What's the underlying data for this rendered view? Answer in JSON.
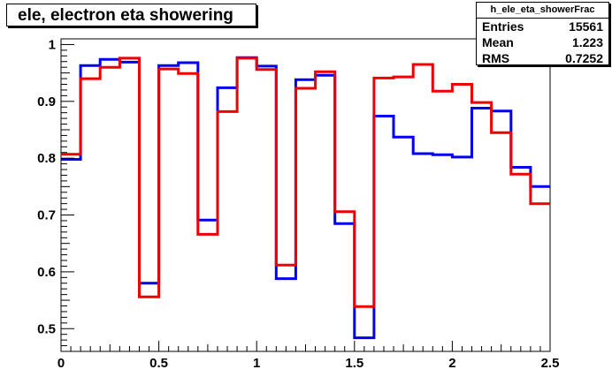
{
  "chart_data": {
    "type": "line",
    "title": "ele, electron eta showering",
    "xlabel": "",
    "ylabel": "",
    "xlim": [
      0,
      2.5
    ],
    "ylim": [
      0.46,
      1.01
    ],
    "x_ticks": [
      "0",
      "0.5",
      "1",
      "1.5",
      "2",
      "2.5"
    ],
    "y_ticks": [
      "0.5",
      "0.6",
      "0.7",
      "0.8",
      "0.9",
      "1"
    ],
    "bin_edges": [
      0,
      0.1,
      0.2,
      0.3,
      0.4,
      0.5,
      0.6,
      0.7,
      0.8,
      0.9,
      1.0,
      1.1,
      1.2,
      1.3,
      1.4,
      1.5,
      1.6,
      1.7,
      1.8,
      1.9,
      2.0,
      2.1,
      2.2,
      2.3,
      2.4,
      2.5
    ],
    "series": [
      {
        "color": "#0000ee",
        "values": [
          0.798,
          0.963,
          0.974,
          0.969,
          0.58,
          0.963,
          0.968,
          0.691,
          0.924,
          0.977,
          0.962,
          0.588,
          0.938,
          0.946,
          0.685,
          0.484,
          0.874,
          0.837,
          0.808,
          0.806,
          0.802,
          0.888,
          0.883,
          0.784,
          0.75
        ]
      },
      {
        "color": "#ee0000",
        "values": [
          0.807,
          0.94,
          0.96,
          0.976,
          0.556,
          0.957,
          0.949,
          0.666,
          0.882,
          0.976,
          0.956,
          0.612,
          0.923,
          0.952,
          0.706,
          0.539,
          0.941,
          0.943,
          0.965,
          0.918,
          0.93,
          0.898,
          0.845,
          0.772,
          0.72
        ]
      }
    ]
  },
  "title": "ele, electron eta showering",
  "stats": {
    "name": "h_ele_eta_showerFrac",
    "rows": [
      {
        "label": "Entries",
        "value": "15561"
      },
      {
        "label": "Mean",
        "value": "1.223"
      },
      {
        "label": "RMS",
        "value": "0.7252"
      }
    ]
  }
}
